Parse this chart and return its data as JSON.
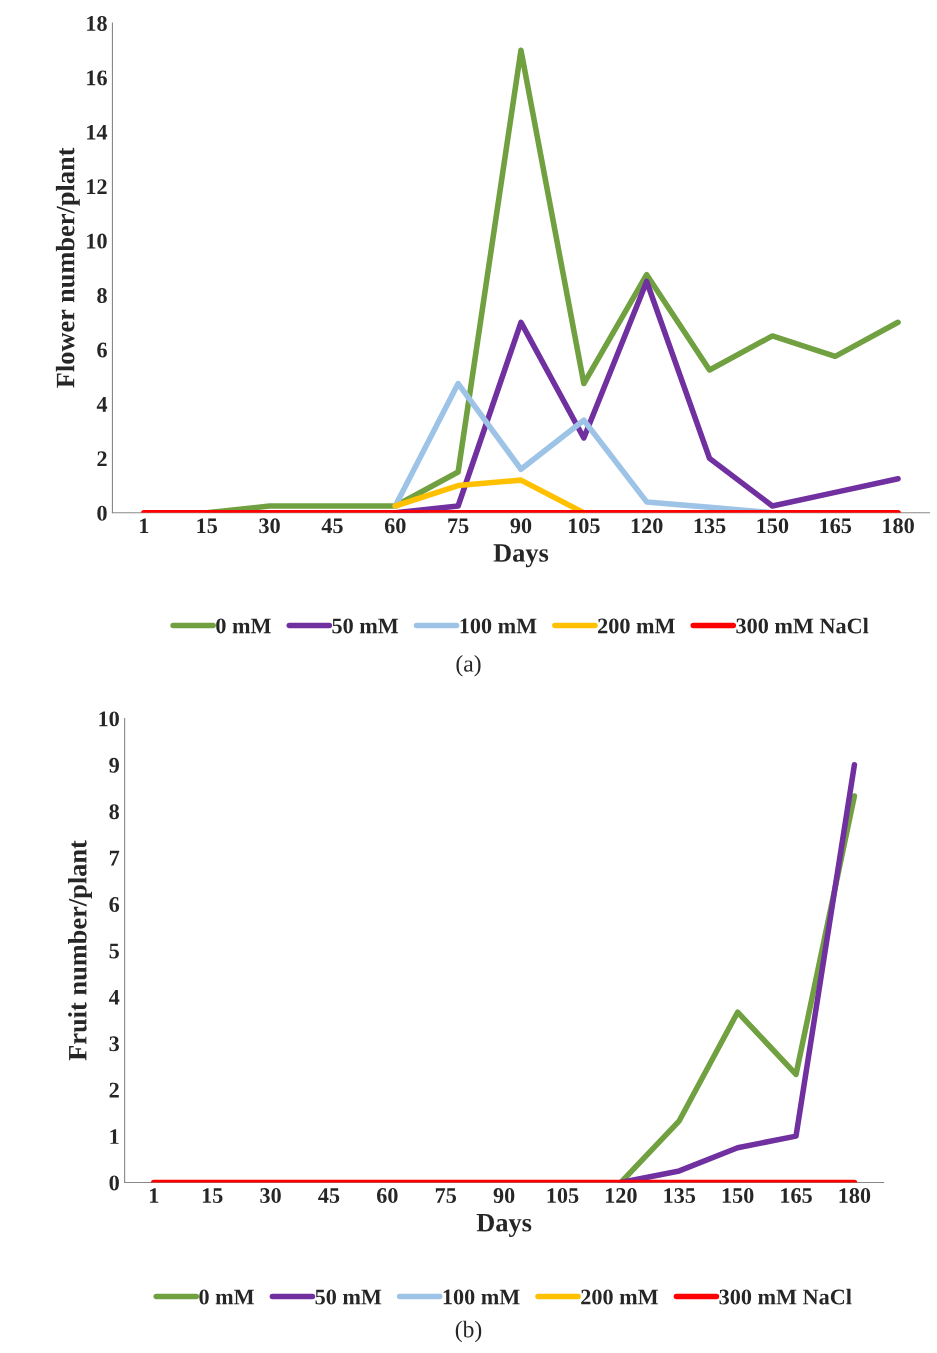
{
  "chart_data": [
    {
      "type": "line",
      "xlabel": "Days",
      "ylabel": "Flower number/plant",
      "categories": [
        "1",
        "15",
        "30",
        "45",
        "60",
        "75",
        "90",
        "105",
        "120",
        "135",
        "150",
        "165",
        "180"
      ],
      "ylim": [
        0,
        18
      ],
      "yticks": [
        0,
        2,
        4,
        6,
        8,
        10,
        12,
        14,
        16,
        18
      ],
      "grid": false,
      "legend": "bottom",
      "marker": "none",
      "line_style": "solid",
      "annotations": [
        "(a)"
      ],
      "series": [
        {
          "name": "0 mM",
          "color": "#70a040",
          "values": [
            null,
            0,
            0.25,
            0.25,
            0.25,
            1.5,
            17,
            4.75,
            8.75,
            5.25,
            6.5,
            5.75,
            7
          ]
        },
        {
          "name": "50 mM",
          "color": "#7030a0",
          "values": [
            null,
            null,
            null,
            null,
            0,
            0.25,
            7,
            2.75,
            8.5,
            2,
            0.25,
            0.75,
            1.25
          ]
        },
        {
          "name": "100 mM",
          "color": "#9dc3e6",
          "values": [
            null,
            null,
            null,
            null,
            0.25,
            4.75,
            1.6,
            3.4,
            0.4,
            0.2,
            0,
            null,
            null
          ]
        },
        {
          "name": "200 mM",
          "color": "#ffc000",
          "values": [
            null,
            null,
            null,
            null,
            0.25,
            1,
            1.2,
            0,
            null,
            null,
            null,
            null,
            null
          ]
        },
        {
          "name": "300 mM NaCl",
          "color": "#ff0000",
          "values": [
            0,
            0,
            0,
            0,
            0,
            0,
            0,
            0,
            0,
            0,
            0,
            0,
            0
          ]
        }
      ]
    },
    {
      "type": "line",
      "xlabel": "Days",
      "ylabel": "Fruit number/plant",
      "categories": [
        "1",
        "15",
        "30",
        "45",
        "60",
        "75",
        "90",
        "105",
        "120",
        "135",
        "150",
        "165",
        "180"
      ],
      "ylim": [
        0,
        10
      ],
      "yticks": [
        0,
        1,
        2,
        3,
        4,
        5,
        6,
        7,
        8,
        9,
        10
      ],
      "grid": false,
      "legend": "bottom",
      "marker": "none",
      "line_style": "solid",
      "annotations": [
        "(b)"
      ],
      "series": [
        {
          "name": "0 mM",
          "color": "#70a040",
          "values": [
            null,
            null,
            null,
            null,
            null,
            null,
            null,
            null,
            0,
            1.33,
            3.67,
            2.33,
            8.33
          ]
        },
        {
          "name": "50 mM",
          "color": "#7030a0",
          "values": [
            null,
            null,
            null,
            null,
            null,
            null,
            null,
            null,
            0,
            0.25,
            0.75,
            1,
            9
          ]
        },
        {
          "name": "100 mM",
          "color": "#9dc3e6",
          "values": [
            null,
            null,
            null,
            null,
            null,
            null,
            null,
            null,
            null,
            null,
            null,
            null,
            null
          ]
        },
        {
          "name": "200 mM",
          "color": "#ffc000",
          "values": [
            null,
            null,
            null,
            null,
            null,
            null,
            null,
            null,
            null,
            null,
            null,
            null,
            null
          ]
        },
        {
          "name": "300 mM NaCl",
          "color": "#ff0000",
          "values": [
            0,
            0,
            0,
            0,
            0,
            0,
            0,
            0,
            0,
            0,
            0,
            0,
            0
          ]
        }
      ]
    }
  ]
}
